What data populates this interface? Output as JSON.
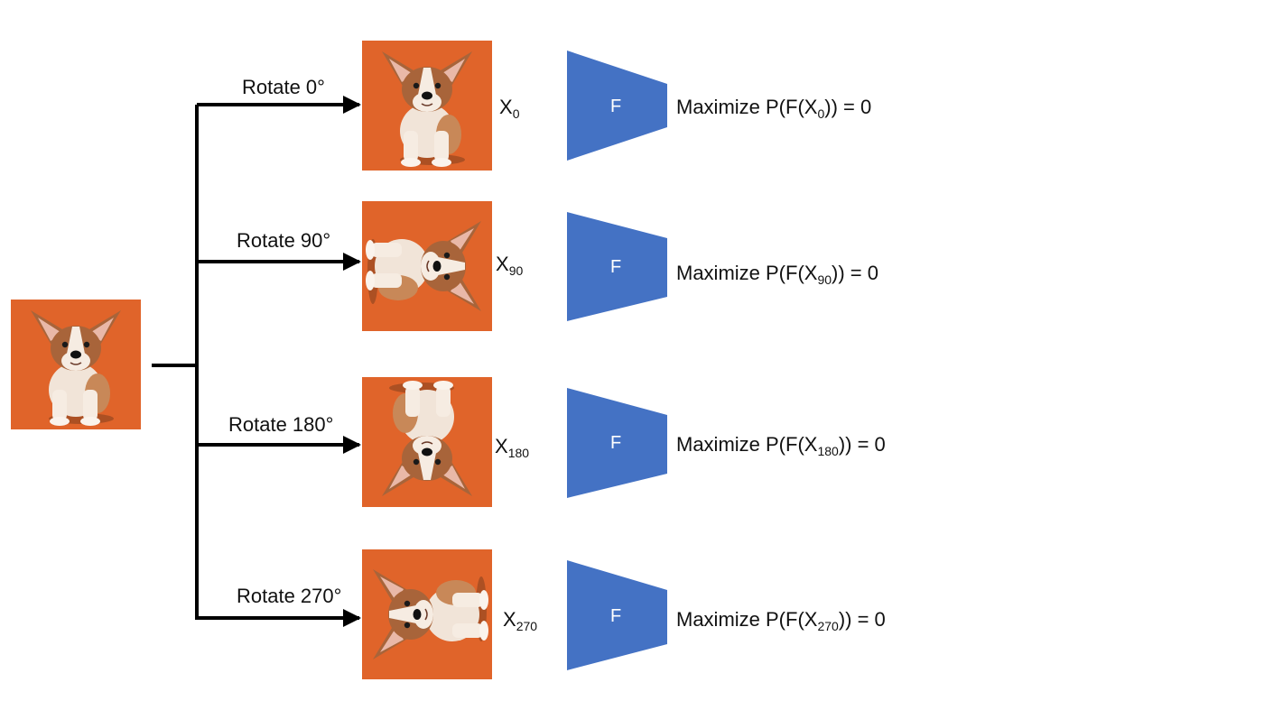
{
  "colors": {
    "tile_background": "#E0642A",
    "network_fill": "#4472C4",
    "arrow": "#000000",
    "fur_light": "#F1E4D8",
    "fur_brown": "#A8643A"
  },
  "source": {
    "image": "puppy-photo",
    "rotation_deg": 0
  },
  "branches": [
    {
      "rotation_deg": 0,
      "rotate_label": "Rotate 0°",
      "x_base": "X",
      "x_sub": "0",
      "network_label": "F",
      "objective_prefix": "Maximize P(F(X",
      "objective_sub": "0",
      "objective_suffix": ")) = 0"
    },
    {
      "rotation_deg": 90,
      "rotate_label": "Rotate 90°",
      "x_base": "X",
      "x_sub": "90",
      "network_label": "F",
      "objective_prefix": "Maximize P(F(X",
      "objective_sub": "90",
      "objective_suffix": ")) = 0"
    },
    {
      "rotation_deg": 180,
      "rotate_label": "Rotate 180°",
      "x_base": "X",
      "x_sub": "180",
      "network_label": "F",
      "objective_prefix": "Maximize P(F(X",
      "objective_sub": "180",
      "objective_suffix": ")) = 0"
    },
    {
      "rotation_deg": 270,
      "rotate_label": "Rotate 270°",
      "x_base": "X",
      "x_sub": "270",
      "network_label": "F",
      "objective_prefix": "Maximize P(F(X",
      "objective_sub": "270",
      "objective_suffix": ")) = 0"
    }
  ]
}
